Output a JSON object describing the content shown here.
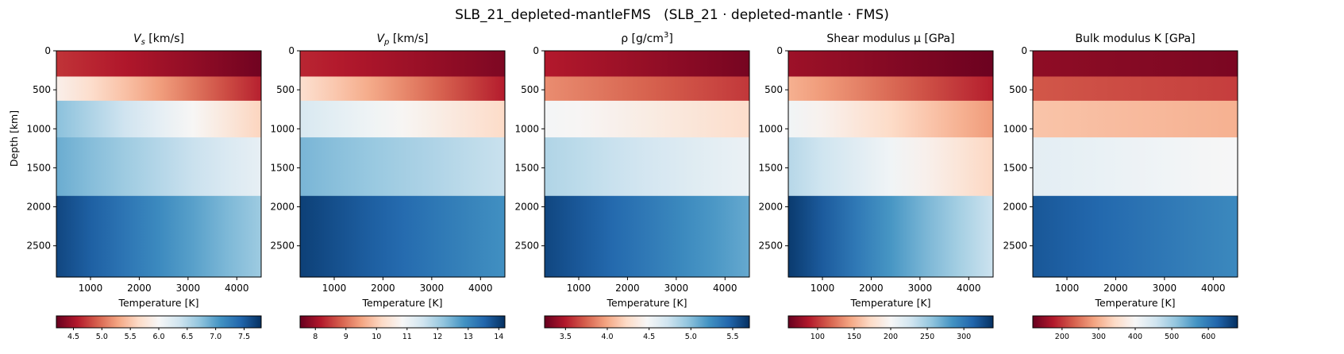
{
  "figure": {
    "suptitle": "SLB_21_depleted-mantleFMS   (SLB_21 · depleted-mantle · FMS)"
  },
  "colormap": {
    "name": "RdBu",
    "stops": [
      "#67001f",
      "#b2182b",
      "#d6604d",
      "#f4a582",
      "#fddbc7",
      "#f7f7f7",
      "#d1e5f0",
      "#92c5de",
      "#4393c3",
      "#2166ac",
      "#053061"
    ]
  },
  "chart_data": [
    {
      "type": "heatmap",
      "title_main": "V",
      "title_sub": "s",
      "title_units": " [km/s]",
      "xlabel": "Temperature [K]",
      "ylabel": "Depth [km]",
      "xlim": [
        300,
        4500
      ],
      "ylim": [
        2900,
        0
      ],
      "xticks": [
        1000,
        2000,
        3000,
        4000
      ],
      "yticks": [
        0,
        500,
        1000,
        1500,
        2000,
        2500
      ],
      "colorbar": {
        "range": [
          4.2,
          7.8
        ],
        "ticks": [
          "4.5",
          "5.0",
          "5.5",
          "6.0",
          "6.5",
          "7.0",
          "7.5"
        ],
        "tick_values": [
          4.5,
          5.0,
          5.5,
          6.0,
          6.5,
          7.0,
          7.5
        ]
      },
      "regions": [
        {
          "depth": [
            0,
            330
          ],
          "value_at_T300": 4.7,
          "value_at_T4500": 4.25
        },
        {
          "depth": [
            330,
            640
          ],
          "value_at_T300": 5.9,
          "value_at_T4500": 4.6
        },
        {
          "depth": [
            640,
            1110
          ],
          "value_at_T300": 6.75,
          "value_at_T4500": 5.6
        },
        {
          "depth": [
            1110,
            1860
          ],
          "value_at_T300": 6.9,
          "value_at_T4500": 6.15
        },
        {
          "depth": [
            1860,
            2900
          ],
          "value_at_T300": 7.65,
          "value_at_T4500": 6.65
        }
      ]
    },
    {
      "type": "heatmap",
      "title_main": "V",
      "title_sub": "p",
      "title_units": " [km/s]",
      "xlabel": "Temperature [K]",
      "xlim": [
        300,
        4500
      ],
      "ylim": [
        2900,
        0
      ],
      "xticks": [
        1000,
        2000,
        3000,
        4000
      ],
      "yticks": [
        0,
        500,
        1000,
        1500,
        2000,
        2500
      ],
      "colorbar": {
        "range": [
          7.5,
          14.2
        ],
        "ticks": [
          "8",
          "9",
          "10",
          "11",
          "12",
          "13",
          "14"
        ],
        "tick_values": [
          8,
          9,
          10,
          11,
          12,
          13,
          14
        ]
      },
      "regions": [
        {
          "depth": [
            0,
            330
          ],
          "value_at_T300": 8.3,
          "value_at_T4500": 7.7
        },
        {
          "depth": [
            330,
            640
          ],
          "value_at_T300": 10.3,
          "value_at_T4500": 8.2
        },
        {
          "depth": [
            640,
            1110
          ],
          "value_at_T300": 11.4,
          "value_at_T4500": 10.2
        },
        {
          "depth": [
            1110,
            1860
          ],
          "value_at_T300": 12.4,
          "value_at_T4500": 11.6
        },
        {
          "depth": [
            1860,
            2900
          ],
          "value_at_T300": 14.0,
          "value_at_T4500": 12.9
        }
      ]
    },
    {
      "type": "heatmap",
      "title_main": "ρ [g/cm",
      "title_sup": "3",
      "title_units": "]",
      "xlabel": "Temperature [K]",
      "xlim": [
        300,
        4500
      ],
      "ylim": [
        2900,
        0
      ],
      "xticks": [
        1000,
        2000,
        3000,
        4000
      ],
      "yticks": [
        0,
        500,
        1000,
        1500,
        2000,
        2500
      ],
      "colorbar": {
        "range": [
          3.25,
          5.7
        ],
        "ticks": [
          "3.5",
          "4.0",
          "4.5",
          "5.0",
          "5.5"
        ],
        "tick_values": [
          3.5,
          4.0,
          4.5,
          5.0,
          5.5
        ]
      },
      "regions": [
        {
          "depth": [
            0,
            330
          ],
          "value_at_T300": 3.5,
          "value_at_T4500": 3.3
        },
        {
          "depth": [
            330,
            640
          ],
          "value_at_T300": 3.9,
          "value_at_T4500": 3.6
        },
        {
          "depth": [
            640,
            1110
          ],
          "value_at_T300": 4.5,
          "value_at_T4500": 4.25
        },
        {
          "depth": [
            1110,
            1860
          ],
          "value_at_T300": 4.85,
          "value_at_T4500": 4.55
        },
        {
          "depth": [
            1860,
            2900
          ],
          "value_at_T300": 5.6,
          "value_at_T4500": 5.1
        }
      ]
    },
    {
      "type": "heatmap",
      "title_main": "Shear modulus μ [GPa]",
      "xlabel": "Temperature [K]",
      "xlim": [
        300,
        4500
      ],
      "ylim": [
        2900,
        0
      ],
      "xticks": [
        1000,
        2000,
        3000,
        4000
      ],
      "yticks": [
        0,
        500,
        1000,
        1500,
        2000,
        2500
      ],
      "colorbar": {
        "range": [
          60,
          340
        ],
        "ticks": [
          "100",
          "150",
          "200",
          "250",
          "300"
        ],
        "tick_values": [
          100,
          150,
          200,
          250,
          300
        ]
      },
      "regions": [
        {
          "depth": [
            0,
            330
          ],
          "value_at_T300": 80,
          "value_at_T4500": 62
        },
        {
          "depth": [
            330,
            640
          ],
          "value_at_T300": 150,
          "value_at_T4500": 90
        },
        {
          "depth": [
            640,
            1110
          ],
          "value_at_T300": 205,
          "value_at_T4500": 140
        },
        {
          "depth": [
            1110,
            1860
          ],
          "value_at_T300": 240,
          "value_at_T4500": 170
        },
        {
          "depth": [
            1860,
            2900
          ],
          "value_at_T300": 335,
          "value_at_T4500": 230
        }
      ]
    },
    {
      "type": "heatmap",
      "title_main": "Bulk modulus K [GPa]",
      "xlabel": "Temperature [K]",
      "xlim": [
        300,
        4500
      ],
      "ylim": [
        2900,
        0
      ],
      "xticks": [
        1000,
        2000,
        3000,
        4000
      ],
      "yticks": [
        0,
        500,
        1000,
        1500,
        2000,
        2500
      ],
      "colorbar": {
        "range": [
          120,
          680
        ],
        "ticks": [
          "200",
          "300",
          "400",
          "500",
          "600"
        ],
        "tick_values": [
          200,
          300,
          400,
          500,
          600
        ]
      },
      "regions": [
        {
          "depth": [
            0,
            330
          ],
          "value_at_T300": 150,
          "value_at_T4500": 135
        },
        {
          "depth": [
            330,
            640
          ],
          "value_at_T300": 225,
          "value_at_T4500": 205
        },
        {
          "depth": [
            640,
            1110
          ],
          "value_at_T300": 320,
          "value_at_T4500": 300
        },
        {
          "depth": [
            1110,
            1860
          ],
          "value_at_T300": 430,
          "value_at_T4500": 400
        },
        {
          "depth": [
            1860,
            2900
          ],
          "value_at_T300": 640,
          "value_at_T4500": 580
        }
      ]
    }
  ]
}
